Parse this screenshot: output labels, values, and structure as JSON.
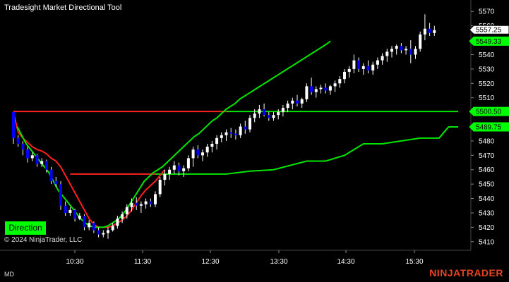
{
  "title": "Tradesight Market Directional Tool",
  "copyright": "© 2024 NinjaTrader, LLC",
  "footer_left": "MD",
  "brand": "NINJATRADER",
  "direction_label": "Direction",
  "colors": {
    "background": "#000000",
    "bull_candle": "#ffffff",
    "bear_candle": "#0000ff",
    "green_line": "#00e600",
    "red_line": "#ff2020",
    "price_tag": "#ffffff",
    "green_tag": "#00ff00"
  },
  "chart_data": {
    "type": "candlestick",
    "ylim": [
      5405,
      5575
    ],
    "xlim": [
      "10:03",
      "11:43"
    ],
    "y_ticks": [
      5410,
      5420,
      5430,
      5440,
      5450,
      5460,
      5470,
      5480,
      5490,
      5500,
      5510,
      5520,
      5530,
      5540,
      5550,
      5560,
      5570
    ],
    "x_ticks": [
      "10:30",
      "11:30",
      "12:30",
      "13:30",
      "14:30",
      "15:30"
    ],
    "price_tags": [
      {
        "label": "5557.25",
        "value": 5557.25,
        "style": "price"
      },
      {
        "label": "5549.33",
        "value": 5549.33,
        "style": "green"
      },
      {
        "label": "5500.50",
        "value": 5500.5,
        "style": "green"
      },
      {
        "label": "5489.75",
        "value": 5489.75,
        "style": "green"
      }
    ],
    "candles": [
      [
        5500,
        5500,
        5478,
        5482
      ],
      [
        5482,
        5484,
        5476,
        5478
      ],
      [
        5478,
        5480,
        5470,
        5474
      ],
      [
        5474,
        5476,
        5465,
        5468
      ],
      [
        5468,
        5472,
        5466,
        5470
      ],
      [
        5470,
        5471,
        5462,
        5464
      ],
      [
        5464,
        5468,
        5462,
        5466
      ],
      [
        5466,
        5467,
        5458,
        5460
      ],
      [
        5460,
        5462,
        5450,
        5452
      ],
      [
        5452,
        5455,
        5448,
        5450
      ],
      [
        5450,
        5452,
        5432,
        5435
      ],
      [
        5435,
        5438,
        5428,
        5430
      ],
      [
        5430,
        5434,
        5428,
        5432
      ],
      [
        5432,
        5433,
        5424,
        5426
      ],
      [
        5426,
        5430,
        5425,
        5428
      ],
      [
        5428,
        5429,
        5418,
        5420
      ],
      [
        5420,
        5425,
        5418,
        5423
      ],
      [
        5423,
        5424,
        5416,
        5418
      ],
      [
        5418,
        5420,
        5413,
        5415
      ],
      [
        5415,
        5418,
        5413,
        5416
      ],
      [
        5416,
        5420,
        5412,
        5418
      ],
      [
        5418,
        5423,
        5417,
        5421
      ],
      [
        5421,
        5428,
        5419,
        5426
      ],
      [
        5426,
        5431,
        5423,
        5429
      ],
      [
        5429,
        5436,
        5426,
        5434
      ],
      [
        5434,
        5440,
        5431,
        5437
      ],
      [
        5437,
        5441,
        5432,
        5435
      ],
      [
        5435,
        5438,
        5430,
        5436
      ],
      [
        5436,
        5440,
        5433,
        5438
      ],
      [
        5438,
        5440,
        5434,
        5436
      ],
      [
        5436,
        5445,
        5434,
        5443
      ],
      [
        5443,
        5455,
        5441,
        5453
      ],
      [
        5453,
        5460,
        5449,
        5457
      ],
      [
        5457,
        5462,
        5453,
        5460
      ],
      [
        5460,
        5466,
        5457,
        5463
      ],
      [
        5463,
        5465,
        5456,
        5459
      ],
      [
        5459,
        5463,
        5455,
        5461
      ],
      [
        5461,
        5470,
        5459,
        5468
      ],
      [
        5468,
        5476,
        5462,
        5474
      ],
      [
        5474,
        5477,
        5468,
        5470
      ],
      [
        5470,
        5474,
        5466,
        5472
      ],
      [
        5472,
        5478,
        5469,
        5476
      ],
      [
        5476,
        5480,
        5472,
        5478
      ],
      [
        5478,
        5484,
        5474,
        5482
      ],
      [
        5482,
        5486,
        5479,
        5484
      ],
      [
        5484,
        5488,
        5480,
        5486
      ],
      [
        5486,
        5489,
        5482,
        5485
      ],
      [
        5485,
        5488,
        5481,
        5484
      ],
      [
        5484,
        5492,
        5482,
        5490
      ],
      [
        5490,
        5494,
        5485,
        5488
      ],
      [
        5488,
        5498,
        5486,
        5496
      ],
      [
        5496,
        5502,
        5493,
        5499
      ],
      [
        5499,
        5505,
        5496,
        5502
      ],
      [
        5502,
        5506,
        5497,
        5498
      ],
      [
        5498,
        5500,
        5494,
        5496
      ],
      [
        5496,
        5500,
        5494,
        5498
      ],
      [
        5498,
        5502,
        5495,
        5500
      ],
      [
        5500,
        5505,
        5497,
        5503
      ],
      [
        5503,
        5508,
        5500,
        5506
      ],
      [
        5506,
        5510,
        5502,
        5508
      ],
      [
        5508,
        5512,
        5504,
        5506
      ],
      [
        5506,
        5510,
        5503,
        5509
      ],
      [
        5509,
        5520,
        5507,
        5518
      ],
      [
        5518,
        5524,
        5512,
        5514
      ],
      [
        5514,
        5518,
        5510,
        5516
      ],
      [
        5516,
        5519,
        5513,
        5517
      ],
      [
        5517,
        5520,
        5513,
        5515
      ],
      [
        5515,
        5519,
        5512,
        5518
      ],
      [
        5518,
        5522,
        5514,
        5520
      ],
      [
        5520,
        5525,
        5517,
        5523
      ],
      [
        5523,
        5530,
        5520,
        5528
      ],
      [
        5528,
        5532,
        5524,
        5530
      ],
      [
        5530,
        5540,
        5527,
        5536
      ],
      [
        5536,
        5538,
        5528,
        5530
      ],
      [
        5530,
        5534,
        5526,
        5532
      ],
      [
        5532,
        5536,
        5527,
        5529
      ],
      [
        5529,
        5535,
        5526,
        5533
      ],
      [
        5533,
        5538,
        5530,
        5536
      ],
      [
        5536,
        5541,
        5533,
        5539
      ],
      [
        5539,
        5544,
        5535,
        5542
      ],
      [
        5542,
        5546,
        5538,
        5544
      ],
      [
        5544,
        5547,
        5540,
        5546
      ],
      [
        5546,
        5548,
        5541,
        5543
      ],
      [
        5543,
        5546,
        5540,
        5544
      ],
      [
        5544,
        5550,
        5534,
        5540
      ],
      [
        5540,
        5546,
        5537,
        5544
      ],
      [
        5544,
        5556,
        5542,
        5554
      ],
      [
        5554,
        5568,
        5550,
        5558
      ],
      [
        5558,
        5562,
        5553,
        5555
      ],
      [
        5555,
        5560,
        5553,
        5557
      ]
    ],
    "red_line": [
      [
        0,
        5500
      ],
      [
        1,
        5486
      ],
      [
        2,
        5482
      ],
      [
        3,
        5479
      ],
      [
        4,
        5476
      ],
      [
        5,
        5474
      ],
      [
        6,
        5473
      ],
      [
        7,
        5471
      ],
      [
        8,
        5468
      ],
      [
        9,
        5466
      ],
      [
        10,
        5462
      ],
      [
        11,
        5456
      ],
      [
        12,
        5450
      ],
      [
        13,
        5444
      ],
      [
        14,
        5438
      ],
      [
        15,
        5432
      ],
      [
        16,
        5426
      ],
      [
        17,
        5422
      ],
      [
        18,
        5420
      ],
      [
        19,
        5420
      ],
      [
        20,
        5420
      ],
      [
        21,
        5421
      ],
      [
        22,
        5423
      ],
      [
        23,
        5425
      ],
      [
        24,
        5428
      ],
      [
        25,
        5432
      ],
      [
        26,
        5437
      ],
      [
        27,
        5442
      ],
      [
        28,
        5446
      ],
      [
        29,
        5449
      ],
      [
        30,
        5452
      ],
      [
        31,
        5456
      ],
      [
        32,
        5460
      ]
    ],
    "green_line": [
      [
        0,
        5490
      ],
      [
        1,
        5484
      ],
      [
        2,
        5478
      ],
      [
        3,
        5474
      ],
      [
        4,
        5470
      ],
      [
        5,
        5466
      ],
      [
        6,
        5462
      ],
      [
        7,
        5458
      ],
      [
        8,
        5452
      ],
      [
        9,
        5446
      ],
      [
        10,
        5442
      ],
      [
        11,
        5438
      ],
      [
        12,
        5434
      ],
      [
        13,
        5430
      ],
      [
        14,
        5426
      ],
      [
        15,
        5423
      ],
      [
        16,
        5421
      ],
      [
        17,
        5420
      ],
      [
        18,
        5420
      ],
      [
        19,
        5420
      ],
      [
        20,
        5421
      ],
      [
        21,
        5423
      ],
      [
        22,
        5425
      ],
      [
        23,
        5428
      ],
      [
        24,
        5432
      ],
      [
        25,
        5437
      ],
      [
        26,
        5442
      ],
      [
        27,
        5447
      ],
      [
        28,
        5452
      ],
      [
        29,
        5455
      ],
      [
        30,
        5458
      ],
      [
        31,
        5460
      ],
      [
        32,
        5462
      ],
      [
        33,
        5465
      ],
      [
        34,
        5468
      ],
      [
        35,
        5471
      ],
      [
        36,
        5474
      ],
      [
        37,
        5477
      ],
      [
        38,
        5480
      ],
      [
        39,
        5483
      ],
      [
        40,
        5485
      ],
      [
        41,
        5488
      ],
      [
        42,
        5491
      ],
      [
        43,
        5494
      ],
      [
        44,
        5496
      ],
      [
        45,
        5499
      ],
      [
        46,
        5502
      ],
      [
        47,
        5504
      ],
      [
        48,
        5506
      ],
      [
        49,
        5509
      ],
      [
        50,
        5511
      ],
      [
        51,
        5513
      ],
      [
        52,
        5515
      ],
      [
        53,
        5517
      ],
      [
        54,
        5519
      ],
      [
        55,
        5521
      ],
      [
        56,
        5523
      ],
      [
        57,
        5525
      ],
      [
        58,
        5527
      ],
      [
        59,
        5529
      ],
      [
        60,
        5531
      ],
      [
        61,
        5533
      ],
      [
        62,
        5535
      ],
      [
        63,
        5537
      ],
      [
        64,
        5539
      ],
      [
        65,
        5541
      ],
      [
        66,
        5543
      ],
      [
        67,
        5545
      ],
      [
        68,
        5547
      ],
      [
        69,
        5549.33
      ]
    ],
    "flat_red": {
      "value": 5500.5,
      "from": 0,
      "to": 45
    },
    "flat_green_upper": {
      "value": 5500.5,
      "from": 45,
      "to": 93
    },
    "support_red": {
      "value": 5457,
      "from": 12,
      "to": 30
    },
    "support_green": {
      "steps": [
        [
          30,
          5457
        ],
        [
          45,
          5457
        ],
        [
          50,
          5459
        ],
        [
          55,
          5460
        ],
        [
          62,
          5466
        ],
        [
          66,
          5466
        ],
        [
          70,
          5470
        ],
        [
          74,
          5478
        ],
        [
          78,
          5478
        ],
        [
          82,
          5480
        ],
        [
          86,
          5482
        ],
        [
          90,
          5482
        ],
        [
          92,
          5489.75
        ],
        [
          93,
          5489.75
        ]
      ]
    }
  }
}
